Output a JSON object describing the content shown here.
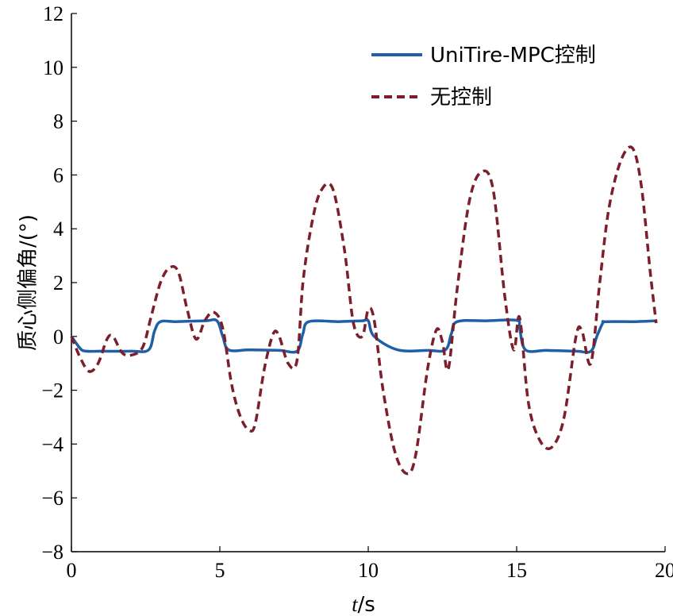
{
  "chart_data": {
    "type": "line",
    "title": "",
    "xlabel_italic": "t",
    "xlabel_unit": "/s",
    "ylabel": "质心侧偏角/(°)",
    "xlim": [
      0,
      20
    ],
    "ylim": [
      -8,
      12
    ],
    "xticks": [
      0,
      5,
      10,
      15,
      20
    ],
    "yticks": [
      -8,
      -6,
      -4,
      -2,
      0,
      2,
      4,
      6,
      8,
      10,
      12
    ],
    "ytick_labels": [
      "−8",
      "−6",
      "−4",
      "−2",
      "0",
      "2",
      "4",
      "6",
      "8",
      "10",
      "12"
    ],
    "grid": false,
    "legend_position": "top-right",
    "series": [
      {
        "name": "UniTire-MPC控制",
        "color": "#1f5fa8",
        "style": "solid",
        "x": [
          0,
          0.3,
          0.5,
          1.0,
          2.0,
          2.6,
          2.8,
          3.0,
          3.5,
          4.5,
          4.9,
          5.1,
          5.3,
          6.0,
          7.0,
          7.6,
          7.8,
          8.0,
          9.0,
          9.8,
          10.0,
          10.2,
          11.0,
          12.0,
          12.6,
          12.8,
          13.0,
          14.0,
          15.0,
          15.1,
          15.3,
          16.0,
          17.0,
          17.5,
          17.7,
          17.9,
          18.0,
          19.0,
          19.7
        ],
        "y": [
          0,
          -0.45,
          -0.55,
          -0.55,
          -0.55,
          -0.5,
          0.2,
          0.55,
          0.55,
          0.58,
          0.58,
          0.0,
          -0.5,
          -0.5,
          -0.52,
          -0.55,
          0.1,
          0.55,
          0.55,
          0.58,
          0.58,
          0.0,
          -0.5,
          -0.52,
          -0.5,
          0.1,
          0.55,
          0.58,
          0.6,
          0.3,
          -0.5,
          -0.52,
          -0.55,
          -0.55,
          0.0,
          0.5,
          0.55,
          0.55,
          0.58
        ]
      },
      {
        "name": "无控制",
        "color": "#7a1f2b",
        "style": "dashed",
        "x": [
          0,
          0.3,
          0.6,
          0.9,
          1.2,
          1.4,
          1.7,
          2.0,
          2.4,
          2.7,
          3.0,
          3.3,
          3.6,
          3.9,
          4.2,
          4.5,
          4.8,
          5.1,
          5.4,
          5.7,
          6.0,
          6.2,
          6.5,
          6.8,
          7.0,
          7.3,
          7.6,
          7.8,
          8.1,
          8.4,
          8.8,
          9.2,
          9.5,
          9.8,
          10.0,
          10.2,
          10.5,
          10.9,
          11.3,
          11.6,
          12.0,
          12.3,
          12.5,
          12.7,
          13.0,
          13.4,
          13.8,
          14.2,
          14.6,
          14.9,
          15.1,
          15.4,
          15.8,
          16.2,
          16.6,
          17.0,
          17.2,
          17.5,
          17.8,
          18.1,
          18.5,
          18.9,
          19.2,
          19.5,
          19.7
        ],
        "y": [
          0,
          -0.8,
          -1.3,
          -1.0,
          -0.1,
          0.0,
          -0.6,
          -0.7,
          -0.4,
          0.8,
          2.0,
          2.55,
          2.4,
          1.0,
          -0.1,
          0.6,
          0.9,
          0.3,
          -1.8,
          -3.0,
          -3.5,
          -3.2,
          -1.2,
          0.1,
          0.0,
          -1.0,
          -0.9,
          2.0,
          4.2,
          5.4,
          5.5,
          3.2,
          0.5,
          0.0,
          1.0,
          0.6,
          -2.0,
          -4.3,
          -5.1,
          -4.4,
          -1.2,
          0.25,
          -0.2,
          -1.2,
          1.8,
          5.0,
          6.1,
          5.5,
          1.5,
          -0.5,
          0.7,
          -2.5,
          -3.9,
          -4.1,
          -3.0,
          0.0,
          0.2,
          -1.0,
          2.0,
          4.7,
          6.5,
          7.0,
          5.6,
          2.4,
          0.5
        ]
      }
    ]
  }
}
